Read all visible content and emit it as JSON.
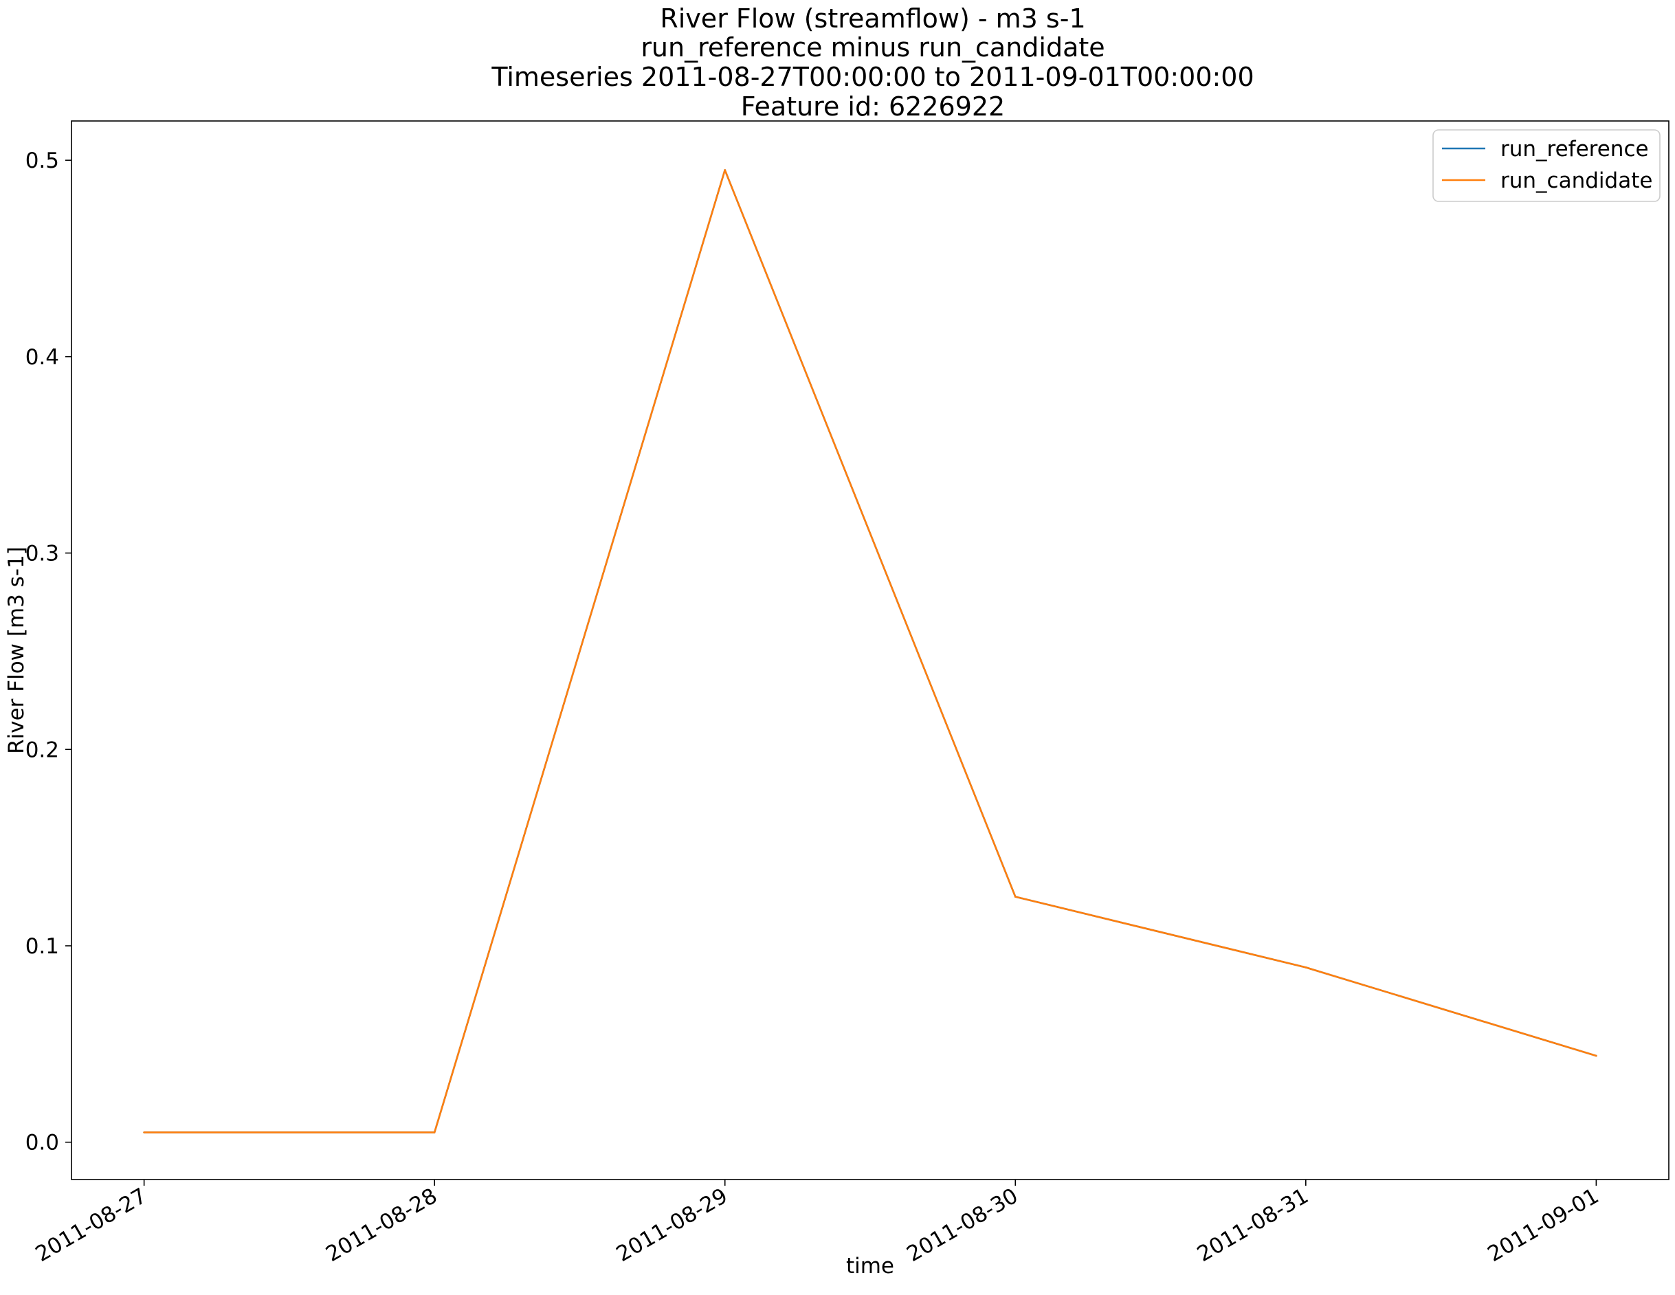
{
  "chart_data": {
    "type": "line",
    "title_lines": [
      "River Flow (streamflow) - m3 s-1",
      "run_reference minus run_candidate",
      "Timeseries 2011-08-27T00:00:00 to 2011-09-01T00:00:00",
      "Feature id: 6226922"
    ],
    "xlabel": "time",
    "ylabel": "River Flow [m3 s-1]",
    "x": [
      "2011-08-27",
      "2011-08-28",
      "2011-08-29",
      "2011-08-30",
      "2011-08-31",
      "2011-09-01"
    ],
    "x_ticks": [
      "2011-08-27",
      "2011-08-28",
      "2011-08-29",
      "2011-08-30",
      "2011-08-31",
      "2011-09-01"
    ],
    "y_ticks": [
      "0.0",
      "0.1",
      "0.2",
      "0.3",
      "0.4",
      "0.5"
    ],
    "ylim": [
      -0.019,
      0.52
    ],
    "xlim": [
      "2011-08-26T18:00",
      "2011-09-01T06:00"
    ],
    "grid": false,
    "legend_position": "top-right",
    "series": [
      {
        "name": "run_reference",
        "color": "#1f77b4",
        "values": [
          0.005,
          0.005,
          0.495,
          0.125,
          0.089,
          0.044
        ]
      },
      {
        "name": "run_candidate",
        "color": "#ff7f0e",
        "values": [
          0.005,
          0.005,
          0.495,
          0.125,
          0.089,
          0.044
        ]
      }
    ]
  }
}
